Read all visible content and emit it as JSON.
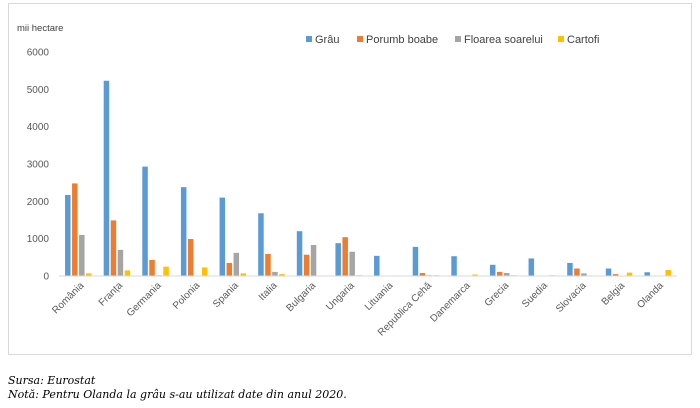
{
  "chart_data": {
    "type": "bar",
    "unit_label": "mii hectare",
    "categories": [
      "România",
      "Franța",
      "Germania",
      "Polonia",
      "Spania",
      "Italia",
      "Bulgaria",
      "Ungaria",
      "Lituania",
      "Republica Cehă",
      "Danemarca",
      "Grecia",
      "Suedia",
      "Slovacia",
      "Belgia",
      "Olanda"
    ],
    "series": [
      {
        "name": "Grâu",
        "color": "#5b9bd5",
        "values": [
          2170,
          5230,
          2930,
          2380,
          2100,
          1680,
          1200,
          880,
          540,
          780,
          530,
          300,
          470,
          350,
          200,
          100
        ]
      },
      {
        "name": "Porumb boabe",
        "color": "#ed7d31",
        "values": [
          2480,
          1490,
          430,
          990,
          350,
          590,
          570,
          1040,
          10,
          80,
          10,
          110,
          0,
          200,
          50,
          0
        ]
      },
      {
        "name": "Floarea soarelui",
        "color": "#a5a5a5",
        "values": [
          1100,
          700,
          20,
          0,
          620,
          110,
          830,
          650,
          0,
          20,
          0,
          80,
          0,
          70,
          0,
          0
        ]
      },
      {
        "name": "Cartofi",
        "color": "#ffc000",
        "values": [
          70,
          150,
          250,
          230,
          70,
          50,
          10,
          20,
          10,
          20,
          40,
          20,
          20,
          10,
          90,
          160
        ]
      }
    ],
    "ylim": [
      0,
      6000
    ],
    "yticks": [
      "0",
      "1000",
      "2000",
      "3000",
      "4000",
      "5000",
      "6000"
    ],
    "grid": false,
    "legend_position": "top-right"
  },
  "notes": {
    "source": "Sursa: Eurostat",
    "note": "Notă: Pentru Olanda la grâu s-au utilizat date din anul 2020."
  }
}
